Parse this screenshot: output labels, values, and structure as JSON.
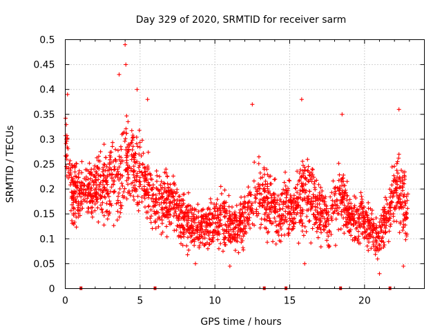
{
  "chart_data": {
    "type": "scatter",
    "title": "Day 329 of 2020, SRMTID for receiver sarm",
    "xlabel": "GPS time / hours",
    "ylabel": "SRMTID / TECUs",
    "xlim": [
      0,
      24
    ],
    "ylim": [
      0,
      0.5
    ],
    "x_ticks": [
      0,
      5,
      10,
      15,
      20
    ],
    "x_tick_labels": [
      "0",
      "5",
      "10",
      "15",
      "20"
    ],
    "y_ticks": [
      0,
      0.05,
      0.1,
      0.15,
      0.2,
      0.25,
      0.3,
      0.35,
      0.4,
      0.45,
      0.5
    ],
    "y_tick_labels": [
      "0",
      "0.05",
      "0.1",
      "0.15",
      "0.2",
      "0.25",
      "0.3",
      "0.35",
      "0.4",
      "0.45",
      "0.5"
    ],
    "grid": true,
    "marker": "+",
    "color": "#ff0000",
    "gap_markers_x": [
      1.05,
      6.0,
      13.3,
      14.75,
      18.4,
      21.7
    ],
    "envelope": {
      "x": [
        0.0,
        0.2,
        0.5,
        1.0,
        1.5,
        2.0,
        2.5,
        3.0,
        3.5,
        4.0,
        4.5,
        5.0,
        5.5,
        6.0,
        6.5,
        7.0,
        7.5,
        8.0,
        8.5,
        9.0,
        9.5,
        10.0,
        10.5,
        11.0,
        11.5,
        12.0,
        12.5,
        13.0,
        13.5,
        14.0,
        14.5,
        15.0,
        15.5,
        16.0,
        16.5,
        17.0,
        17.5,
        18.0,
        18.5,
        19.0,
        19.5,
        20.0,
        20.5,
        21.0,
        21.5,
        22.0,
        22.5,
        22.9
      ],
      "mean": [
        0.3,
        0.25,
        0.19,
        0.19,
        0.2,
        0.2,
        0.21,
        0.22,
        0.23,
        0.25,
        0.25,
        0.24,
        0.2,
        0.17,
        0.17,
        0.18,
        0.16,
        0.14,
        0.13,
        0.12,
        0.13,
        0.14,
        0.14,
        0.13,
        0.12,
        0.14,
        0.17,
        0.19,
        0.18,
        0.16,
        0.15,
        0.16,
        0.17,
        0.19,
        0.18,
        0.15,
        0.13,
        0.17,
        0.18,
        0.15,
        0.14,
        0.14,
        0.12,
        0.1,
        0.15,
        0.19,
        0.19,
        0.15
      ],
      "spread": [
        0.06,
        0.05,
        0.06,
        0.06,
        0.06,
        0.06,
        0.07,
        0.08,
        0.09,
        0.09,
        0.09,
        0.08,
        0.07,
        0.06,
        0.06,
        0.06,
        0.05,
        0.05,
        0.05,
        0.04,
        0.05,
        0.05,
        0.05,
        0.05,
        0.05,
        0.06,
        0.06,
        0.07,
        0.07,
        0.06,
        0.06,
        0.06,
        0.07,
        0.08,
        0.07,
        0.06,
        0.06,
        0.07,
        0.06,
        0.05,
        0.05,
        0.05,
        0.05,
        0.04,
        0.06,
        0.07,
        0.07,
        0.06
      ]
    },
    "notable_points": [
      {
        "x": 4.0,
        "y": 0.49
      },
      {
        "x": 4.05,
        "y": 0.45
      },
      {
        "x": 3.6,
        "y": 0.43
      },
      {
        "x": 4.8,
        "y": 0.4
      },
      {
        "x": 0.15,
        "y": 0.39
      },
      {
        "x": 5.5,
        "y": 0.38
      },
      {
        "x": 15.8,
        "y": 0.38
      },
      {
        "x": 22.3,
        "y": 0.36
      },
      {
        "x": 12.5,
        "y": 0.37
      },
      {
        "x": 18.5,
        "y": 0.35
      },
      {
        "x": 21.0,
        "y": 0.03
      },
      {
        "x": 8.7,
        "y": 0.05
      },
      {
        "x": 11.0,
        "y": 0.045
      },
      {
        "x": 16.0,
        "y": 0.05
      },
      {
        "x": 22.6,
        "y": 0.045
      }
    ]
  }
}
